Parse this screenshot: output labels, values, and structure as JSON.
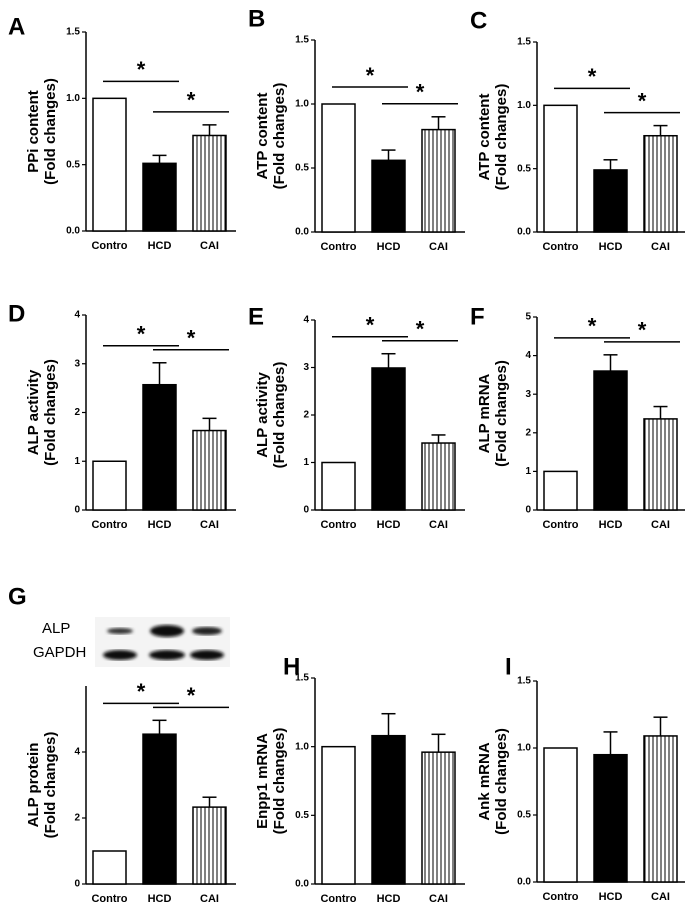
{
  "chart_data": [
    {
      "type": "bar",
      "panel_label": "A",
      "ylabel": [
        "PPi content",
        "(Fold changes)"
      ],
      "categories": [
        "Contro",
        "HCD",
        "CAI"
      ],
      "values": [
        1.0,
        0.51,
        0.72
      ],
      "errors": [
        null,
        0.06,
        0.08
      ],
      "ylim": [
        0,
        1.5
      ],
      "yticks": [
        {
          "value": 0,
          "label": "0.0"
        },
        {
          "value": 0.5,
          "label": "0.5"
        },
        {
          "value": 1,
          "label": "1.0"
        },
        {
          "value": 1.5,
          "label": "1.5"
        }
      ],
      "annotations": [
        "*",
        "*"
      ],
      "bar_styles": [
        "open",
        "solid",
        "striped"
      ]
    },
    {
      "type": "bar",
      "panel_label": "B",
      "ylabel": [
        "ATP content",
        "(Fold changes)"
      ],
      "categories": [
        "Contro",
        "HCD",
        "CAI"
      ],
      "values": [
        1.0,
        0.56,
        0.8
      ],
      "errors": [
        null,
        0.08,
        0.1
      ],
      "ylim": [
        0,
        1.5
      ],
      "yticks": [
        {
          "value": 0,
          "label": "0.0"
        },
        {
          "value": 0.5,
          "label": "0.5"
        },
        {
          "value": 1,
          "label": "1.0"
        },
        {
          "value": 1.5,
          "label": "1.5"
        }
      ],
      "annotations": [
        "*",
        "*"
      ],
      "bar_styles": [
        "open",
        "solid",
        "striped"
      ]
    },
    {
      "type": "bar",
      "panel_label": "C",
      "ylabel": [
        "ATP content",
        "(Fold changes)"
      ],
      "categories": [
        "Contro",
        "HCD",
        "CAI"
      ],
      "values": [
        1.0,
        0.49,
        0.76
      ],
      "errors": [
        null,
        0.08,
        0.08
      ],
      "ylim": [
        0,
        1.5
      ],
      "yticks": [
        {
          "value": 0,
          "label": "0.0"
        },
        {
          "value": 0.5,
          "label": "0.5"
        },
        {
          "value": 1,
          "label": "1.0"
        },
        {
          "value": 1.5,
          "label": "1.5"
        }
      ],
      "annotations": [
        "*",
        "*"
      ],
      "bar_styles": [
        "open",
        "solid",
        "striped"
      ]
    },
    {
      "type": "bar",
      "panel_label": "D",
      "ylabel": [
        "ALP activity",
        "(Fold changes)"
      ],
      "categories": [
        "Contro",
        "HCD",
        "CAI"
      ],
      "values": [
        1.0,
        2.57,
        1.63
      ],
      "errors": [
        null,
        0.45,
        0.25
      ],
      "ylim": [
        0,
        4
      ],
      "yticks": [
        0,
        1,
        2,
        3,
        4
      ],
      "annotations": [
        "*",
        "*"
      ],
      "bar_styles": [
        "open",
        "solid",
        "striped"
      ]
    },
    {
      "type": "bar",
      "panel_label": "E",
      "ylabel": [
        "ALP activity",
        "(Fold changes)"
      ],
      "categories": [
        "Contro",
        "HCD",
        "CAI"
      ],
      "values": [
        1.0,
        2.99,
        1.41
      ],
      "errors": [
        null,
        0.3,
        0.17
      ],
      "ylim": [
        0,
        4
      ],
      "yticks": [
        0,
        1,
        2,
        3,
        4
      ],
      "annotations": [
        "*",
        "*"
      ],
      "bar_styles": [
        "open",
        "solid",
        "striped"
      ]
    },
    {
      "type": "bar",
      "panel_label": "F",
      "ylabel": [
        "ALP mRNA",
        "(Fold changes)"
      ],
      "categories": [
        "Contro",
        "HCD",
        "CAI"
      ],
      "values": [
        1.0,
        3.6,
        2.36
      ],
      "errors": [
        null,
        0.42,
        0.32
      ],
      "ylim": [
        0,
        5
      ],
      "yticks": [
        0,
        1,
        2,
        3,
        4,
        5
      ],
      "annotations": [
        "*",
        "*"
      ],
      "bar_styles": [
        "open",
        "solid",
        "striped"
      ]
    },
    {
      "type": "bar",
      "panel_label": "G",
      "blot_labels": [
        "ALP",
        "GAPDH"
      ],
      "ylabel": [
        "ALP protein",
        "(Fold changes)"
      ],
      "categories": [
        "Contro",
        "HCD",
        "CAI"
      ],
      "values": [
        1.0,
        4.54,
        2.33
      ],
      "errors": [
        null,
        0.42,
        0.3
      ],
      "ylim": [
        0,
        6
      ],
      "yticks": [
        0,
        2,
        4
      ],
      "annotations": [
        "*",
        "*"
      ],
      "bar_styles": [
        "open",
        "solid",
        "striped"
      ]
    },
    {
      "type": "bar",
      "panel_label": "H",
      "ylabel": [
        "Enpp1 mRNA",
        "(Fold changes)"
      ],
      "categories": [
        "Contro",
        "HCD",
        "CAI"
      ],
      "values": [
        1.0,
        1.08,
        0.96
      ],
      "errors": [
        null,
        0.16,
        0.13
      ],
      "ylim": [
        0,
        1.5
      ],
      "yticks": [
        {
          "value": 0,
          "label": "0.0"
        },
        {
          "value": 0.5,
          "label": "0.5"
        },
        {
          "value": 1,
          "label": "1.0"
        },
        {
          "value": 1.5,
          "label": "1.5"
        }
      ],
      "annotations": [],
      "bar_styles": [
        "open",
        "solid",
        "striped"
      ]
    },
    {
      "type": "bar",
      "panel_label": "I",
      "ylabel": [
        "Ank mRNA",
        "(Fold changes)"
      ],
      "categories": [
        "Contro",
        "HCD",
        "CAI"
      ],
      "values": [
        1.0,
        0.95,
        1.09
      ],
      "errors": [
        null,
        0.17,
        0.14
      ],
      "ylim": [
        0,
        1.5
      ],
      "yticks": [
        {
          "value": 0,
          "label": "0.0"
        },
        {
          "value": 0.5,
          "label": "0.5"
        },
        {
          "value": 1,
          "label": "1.0"
        },
        {
          "value": 1.5,
          "label": "1.5"
        }
      ],
      "annotations": [],
      "bar_styles": [
        "open",
        "solid",
        "striped"
      ]
    }
  ]
}
